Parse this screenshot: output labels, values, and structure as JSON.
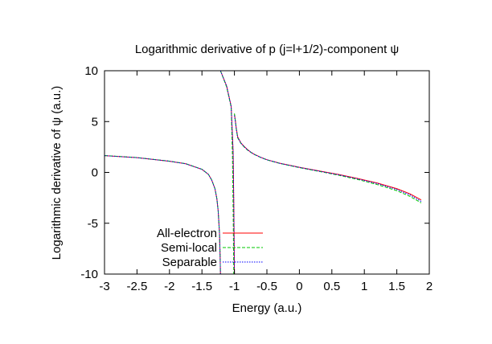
{
  "chart_data": {
    "type": "line",
    "title": "Logarithmic derivative of p (j=l+1/2)-component ψ",
    "xlabel": "Energy (a.u.)",
    "ylabel": "Logarithmic derivative of ψ (a.u.)",
    "xlim": [
      -3,
      2
    ],
    "ylim": [
      -10,
      10
    ],
    "xticks": [
      -3,
      -2.5,
      -2,
      -1.5,
      -1,
      -0.5,
      0,
      0.5,
      1,
      1.5,
      2
    ],
    "xtick_labels": [
      "-3",
      "-2.5",
      "-2",
      "-1.5",
      "-1",
      "-0.5",
      "0",
      "0.5",
      "1",
      "1.5",
      "2"
    ],
    "yticks": [
      -10,
      -5,
      0,
      5,
      10
    ],
    "ytick_labels": [
      "-10",
      "-5",
      "0",
      "5",
      "10"
    ],
    "grid": false,
    "legend_position": "bottom-left",
    "x_end": 1.875,
    "series": [
      {
        "name": "All-electron",
        "color": "#ff0000",
        "dash": "solid",
        "branches": [
          {
            "x": [
              -3.0,
              -2.5,
              -2.0,
              -1.75,
              -1.5,
              -1.4,
              -1.35,
              -1.3,
              -1.27,
              -1.25,
              -1.23,
              -1.22,
              -1.215
            ],
            "y": [
              1.65,
              1.45,
              1.1,
              0.85,
              0.3,
              -0.2,
              -0.75,
              -1.6,
              -2.6,
              -3.8,
              -6.0,
              -8.3,
              -10.0
            ]
          },
          {
            "x": [
              -1.215,
              -1.12,
              -1.05,
              -1.02,
              -1.01,
              -1.0
            ],
            "y": [
              10.0,
              8.5,
              6.5,
              2.0,
              -3.0,
              -10.0
            ]
          },
          {
            "x": [
              -1.0,
              -0.99,
              -0.97,
              -0.95,
              -0.9,
              -0.85,
              -0.8,
              -0.75,
              -0.7,
              -0.6,
              -0.5,
              -0.3,
              0.0,
              0.3,
              0.6,
              0.9,
              1.2,
              1.5,
              1.7,
              1.875
            ],
            "y": [
              5.7,
              5.3,
              4.3,
              3.5,
              2.9,
              2.55,
              2.25,
              2.0,
              1.8,
              1.5,
              1.25,
              0.9,
              0.5,
              0.15,
              -0.2,
              -0.6,
              -1.05,
              -1.6,
              -2.1,
              -2.7
            ]
          }
        ]
      },
      {
        "name": "Semi-local",
        "color": "#00c800",
        "dash": "dashed",
        "branches": [
          {
            "x": [
              -3.0,
              -2.5,
              -2.0,
              -1.75,
              -1.5,
              -1.4,
              -1.35,
              -1.3,
              -1.27,
              -1.25,
              -1.23,
              -1.22,
              -1.215
            ],
            "y": [
              1.66,
              1.46,
              1.11,
              0.86,
              0.31,
              -0.19,
              -0.74,
              -1.58,
              -2.58,
              -3.78,
              -5.95,
              -8.25,
              -10.0
            ]
          },
          {
            "x": [
              -1.215,
              -1.12,
              -1.05,
              -1.03,
              -1.02,
              -1.01
            ],
            "y": [
              10.0,
              8.4,
              6.4,
              1.5,
              -3.5,
              -10.0
            ]
          },
          {
            "x": [
              -1.0,
              -0.99,
              -0.97,
              -0.95,
              -0.9,
              -0.85,
              -0.8,
              -0.75,
              -0.7,
              -0.6,
              -0.5,
              -0.3,
              0.0,
              0.3,
              0.6,
              0.9,
              1.2,
              1.5,
              1.7,
              1.875
            ],
            "y": [
              5.8,
              5.3,
              4.2,
              3.4,
              2.85,
              2.5,
              2.2,
              1.98,
              1.78,
              1.48,
              1.23,
              0.88,
              0.47,
              0.1,
              -0.27,
              -0.7,
              -1.2,
              -1.8,
              -2.35,
              -3.0
            ]
          }
        ]
      },
      {
        "name": "Separable",
        "color": "#0000ff",
        "dash": "dotted",
        "branches": [
          {
            "x": [
              -3.0,
              -2.5,
              -2.0,
              -1.75,
              -1.5,
              -1.4,
              -1.35,
              -1.3,
              -1.27,
              -1.25,
              -1.23,
              -1.22,
              -1.215
            ],
            "y": [
              1.65,
              1.45,
              1.1,
              0.85,
              0.3,
              -0.2,
              -0.75,
              -1.6,
              -2.6,
              -3.8,
              -6.0,
              -8.3,
              -10.0
            ]
          },
          {
            "x": [
              -1.215,
              -1.12,
              -1.05,
              -1.02,
              -1.01,
              -1.0
            ],
            "y": [
              10.0,
              8.5,
              6.5,
              2.0,
              -3.0,
              -10.0
            ]
          },
          {
            "x": [
              -1.0,
              -0.99,
              -0.97,
              -0.95,
              -0.9,
              -0.85,
              -0.8,
              -0.75,
              -0.7,
              -0.6,
              -0.5,
              -0.3,
              0.0,
              0.3,
              0.6,
              0.9,
              1.2,
              1.5,
              1.7,
              1.875
            ],
            "y": [
              5.6,
              5.2,
              4.2,
              3.45,
              2.88,
              2.53,
              2.23,
              1.99,
              1.79,
              1.49,
              1.24,
              0.89,
              0.49,
              0.13,
              -0.23,
              -0.64,
              -1.1,
              -1.68,
              -2.2,
              -2.85
            ]
          }
        ]
      }
    ]
  }
}
